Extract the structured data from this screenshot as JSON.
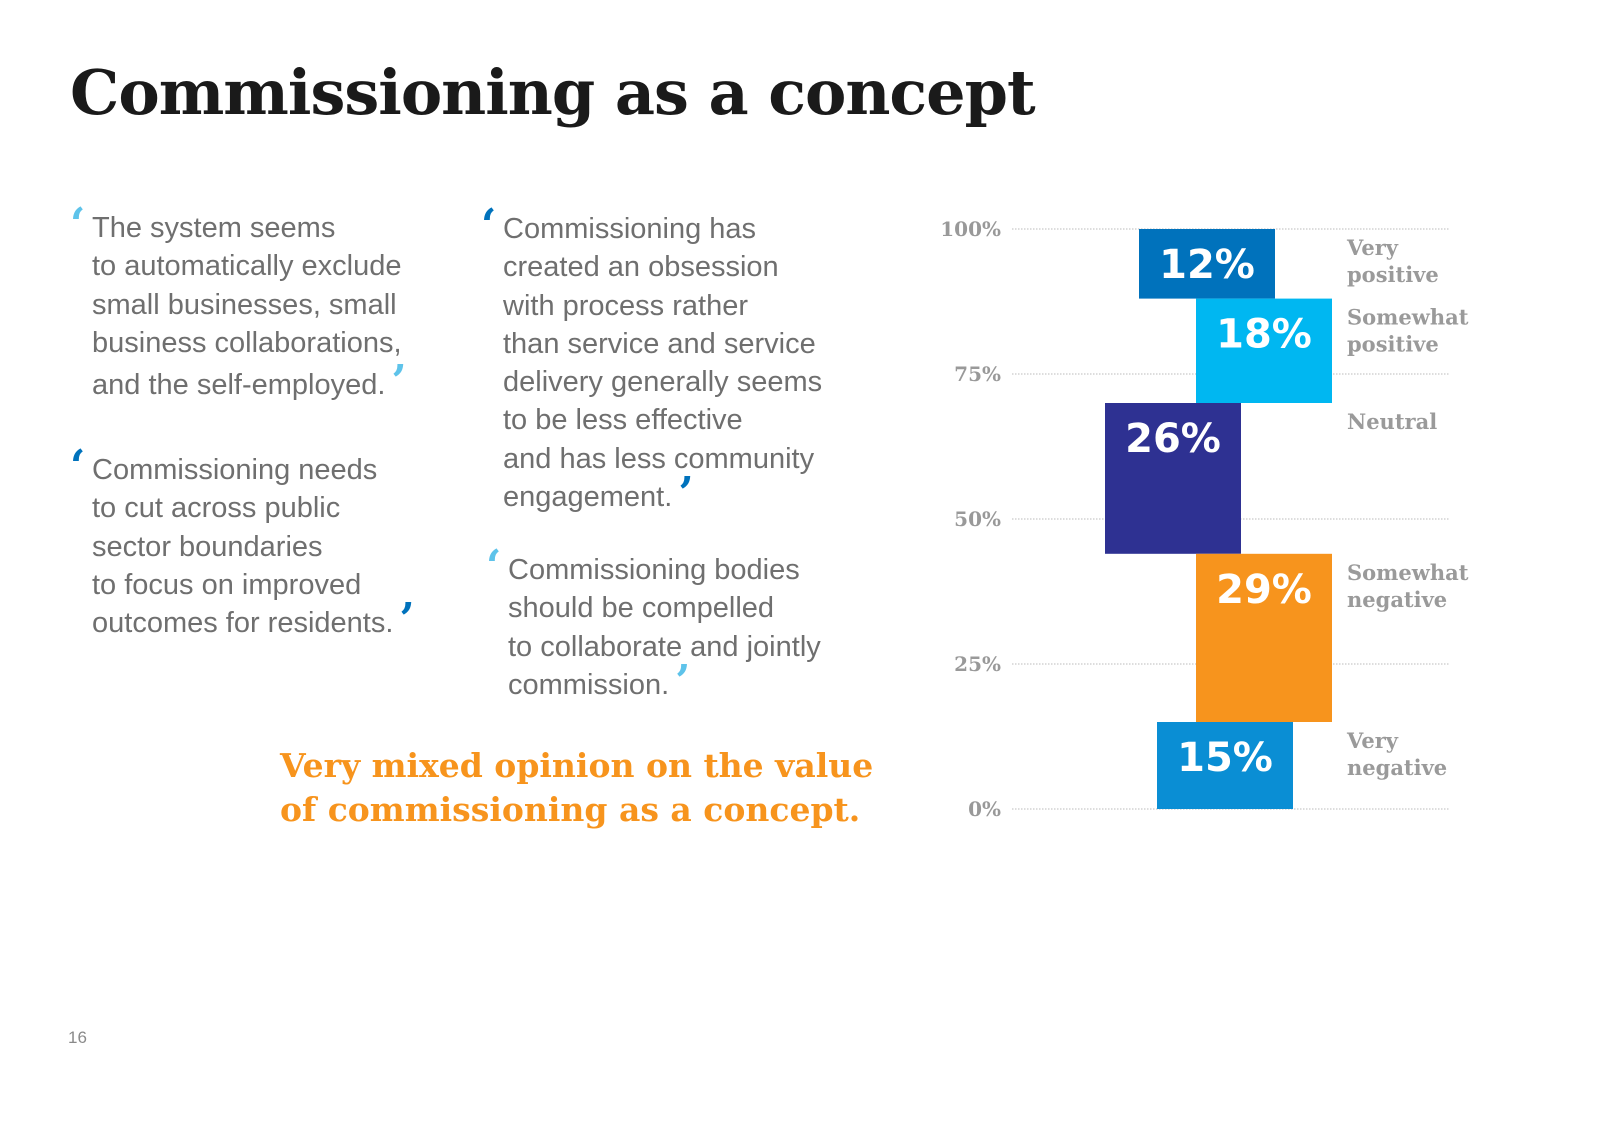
{
  "title": "Commissioning as a concept",
  "quotes": [
    {
      "lines": [
        "The system seems",
        "to automatically exclude",
        "small businesses, small",
        "business collaborations,",
        "and the self-employed."
      ]
    },
    {
      "lines": [
        "Commissioning needs",
        "to cut across public",
        "sector boundaries",
        "to focus on improved",
        "outcomes for residents."
      ]
    },
    {
      "lines": [
        "Commissioning has",
        "created an obsession",
        "with process rather",
        "than service and service",
        "delivery generally seems",
        "to be less effective",
        "and has less community",
        "engagement."
      ]
    },
    {
      "lines": [
        "Commissioning bodies",
        "should be compelled",
        "to collaborate and jointly",
        "commission."
      ]
    }
  ],
  "conclusion": {
    "lines": [
      "Very mixed opinion on the value",
      "of commissioning as a concept."
    ]
  },
  "page_number": "16",
  "colors": {
    "quote_light": "#5ec3ea",
    "quote_dark": "#0072bc",
    "accent_orange": "#f7941d",
    "grid": "#bbbbbb"
  },
  "chart_data": {
    "type": "bar",
    "subtype": "floating-stacked",
    "title": "",
    "xlabel": "",
    "ylabel": "",
    "ylim": [
      0,
      100
    ],
    "yticks": [
      {
        "value": 100,
        "label": "100%"
      },
      {
        "value": 75,
        "label": "75%"
      },
      {
        "value": 50,
        "label": "50%"
      },
      {
        "value": 25,
        "label": "25%"
      },
      {
        "value": 0,
        "label": "0%"
      }
    ],
    "grid": true,
    "segments": [
      {
        "category": [
          "Very",
          "positive"
        ],
        "value": 12,
        "label": "12%",
        "color": "#0072bc"
      },
      {
        "category": [
          "Somewhat",
          "positive"
        ],
        "value": 18,
        "label": "18%",
        "color": "#00b7f1"
      },
      {
        "category": [
          "Neutral"
        ],
        "value": 26,
        "label": "26%",
        "color": "#2e3192"
      },
      {
        "category": [
          "Somewhat",
          "negative"
        ],
        "value": 29,
        "label": "29%",
        "color": "#f7941d"
      },
      {
        "category": [
          "Very",
          "negative"
        ],
        "value": 15,
        "label": "15%",
        "color": "#0a8ed4"
      }
    ]
  }
}
